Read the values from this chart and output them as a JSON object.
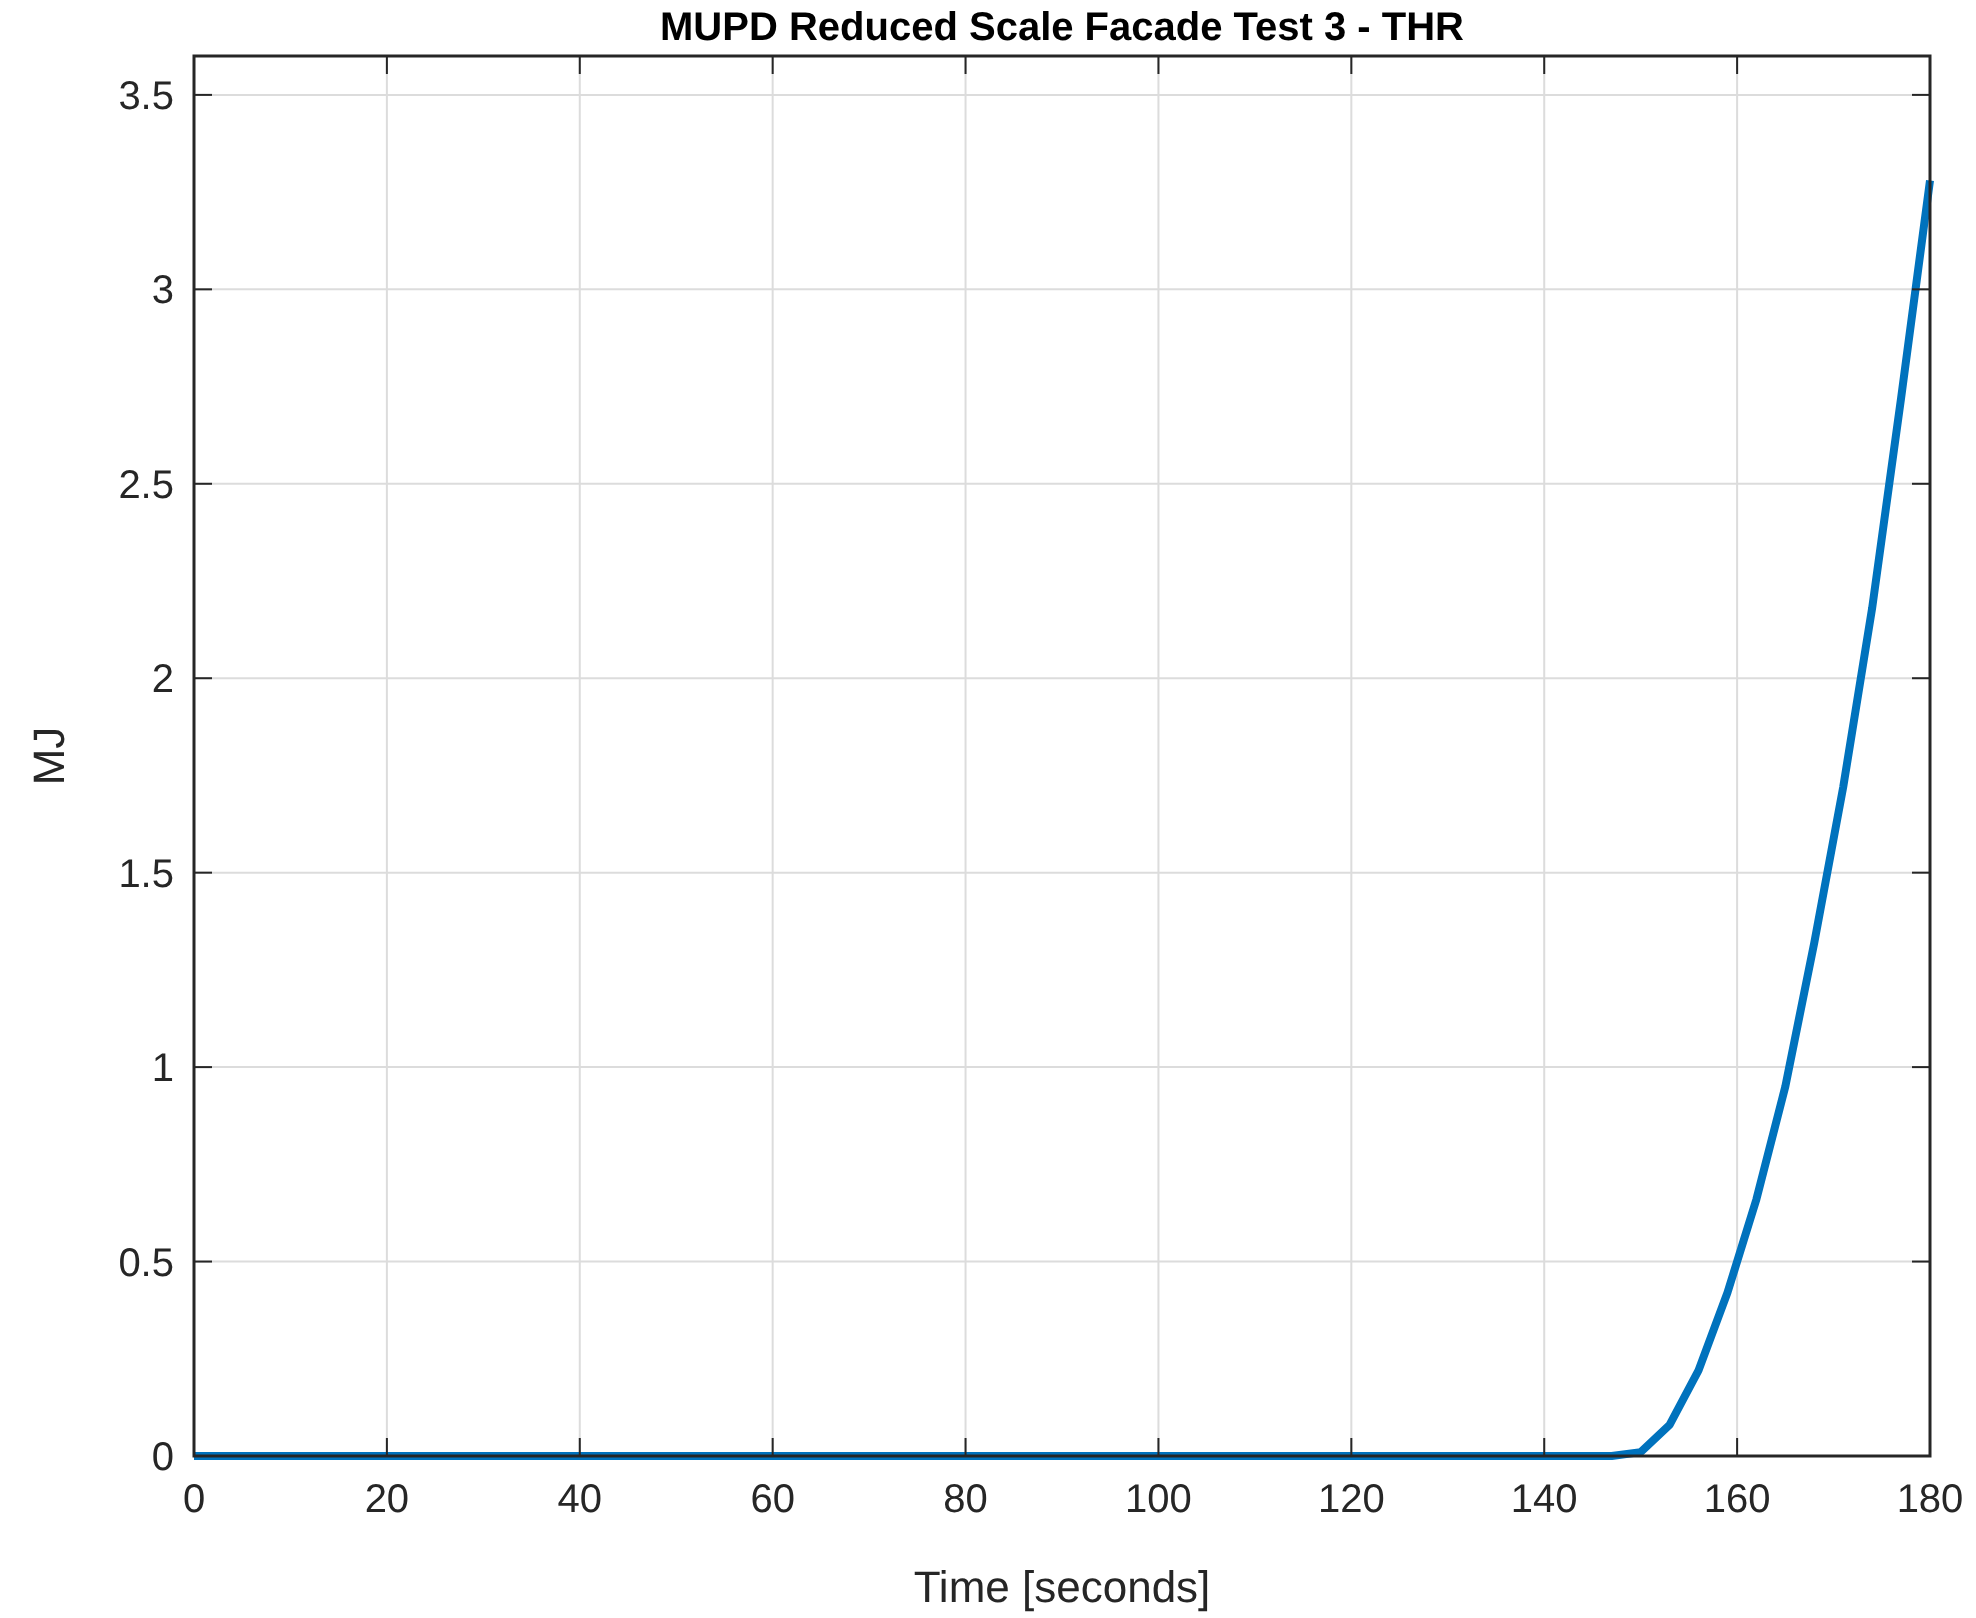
{
  "chart_data": {
    "type": "line",
    "title": "MUPD Reduced Scale Facade Test 3 - THR",
    "xlabel": "Time [seconds]",
    "ylabel": "MJ",
    "x": [
      0,
      147,
      150,
      153,
      156,
      159,
      162,
      165,
      168,
      171,
      174,
      177,
      180
    ],
    "series": [
      {
        "color": "#0072bd",
        "values": [
          0,
          0,
          0.01,
          0.08,
          0.22,
          0.42,
          0.66,
          0.95,
          1.32,
          1.72,
          2.18,
          2.72,
          3.28
        ]
      }
    ],
    "xlim": [
      0,
      180
    ],
    "xticks": [
      0,
      20,
      40,
      60,
      80,
      100,
      120,
      140,
      160,
      180
    ],
    "ylim": [
      0,
      3.6
    ],
    "yticks": [
      0,
      0.5,
      1,
      1.5,
      2,
      2.5,
      3,
      3.5
    ],
    "grid": true
  }
}
